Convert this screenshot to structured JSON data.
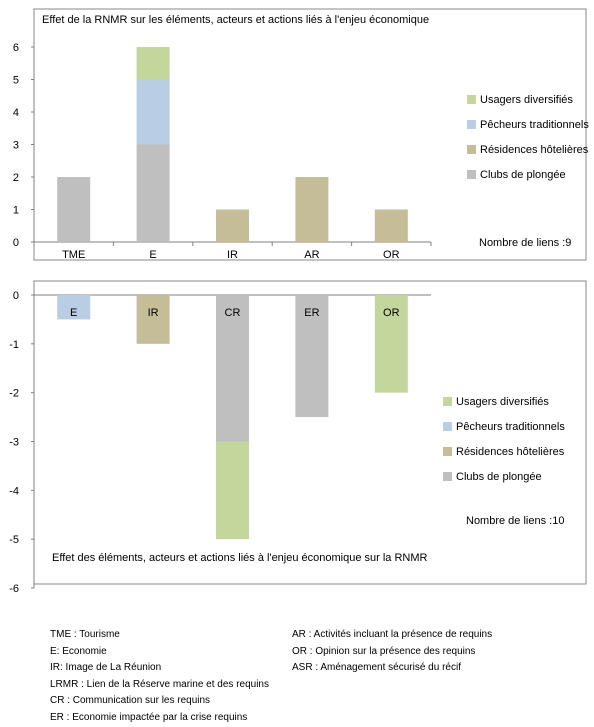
{
  "series_colors": {
    "Usagers diversifiés": "#c3d69b",
    "Pêcheurs traditionnels": "#b9cde5",
    "Résidences hôtelières": "#c4bd97",
    "Clubs de plongée": "#bfbfbf"
  },
  "chart_data": [
    {
      "type": "bar",
      "stacked": true,
      "title": "Effet de la RNMR sur les éléments, acteurs et actions liés à l'enjeu économique",
      "categories": [
        "TME",
        "E",
        "IR",
        "AR",
        "OR"
      ],
      "series": [
        {
          "name": "Clubs de plongée",
          "values": [
            2,
            3,
            0,
            0,
            0
          ]
        },
        {
          "name": "Résidences hôtelières",
          "values": [
            0,
            0,
            1,
            2,
            1
          ]
        },
        {
          "name": "Pêcheurs traditionnels",
          "values": [
            0,
            2,
            0,
            0,
            0
          ]
        },
        {
          "name": "Usagers diversifiés",
          "values": [
            0,
            1,
            0,
            0,
            0
          ]
        }
      ],
      "ylim": [
        0,
        6
      ],
      "yticks": [
        0,
        1,
        2,
        3,
        4,
        5,
        6
      ],
      "legend": [
        "Usagers diversifiés",
        "Pêcheurs traditionnels",
        "Résidences hôtelières",
        "Clubs de plongée"
      ],
      "legend_position": "right",
      "note": "Nombre de liens :9",
      "grid": false
    },
    {
      "type": "bar",
      "stacked": true,
      "title": "Effet des éléments, acteurs et actions liés à l'enjeu économique sur la RNMR",
      "categories": [
        "E",
        "IR",
        "CR",
        "ER",
        "OR"
      ],
      "series": [
        {
          "name": "Clubs de plongée",
          "values": [
            0,
            0,
            -3,
            -2.5,
            0
          ]
        },
        {
          "name": "Résidences hôtelières",
          "values": [
            0,
            -1,
            0,
            0,
            0
          ]
        },
        {
          "name": "Pêcheurs traditionnels",
          "values": [
            -0.5,
            0,
            0,
            0,
            0
          ]
        },
        {
          "name": "Usagers diversifiés",
          "values": [
            0,
            0,
            -2,
            0,
            -2
          ]
        }
      ],
      "ylim": [
        -6,
        0
      ],
      "yticks": [
        0,
        -1,
        -2,
        -3,
        -4,
        -5,
        -6
      ],
      "legend": [
        "Usagers diversifiés",
        "Pêcheurs traditionnels",
        "Résidences hôtelières",
        "Clubs de plongée"
      ],
      "legend_position": "right",
      "note": "Nombre de liens :10",
      "grid": false
    }
  ],
  "glossary": {
    "left": [
      "TME : Tourisme",
      "E: Economie",
      "IR: Image de La Réunion",
      "LRMR : Lien de la Réserve marine et des requins",
      "CR : Communication sur les requins",
      "ER : Economie impactée par la crise requins"
    ],
    "right": [
      "AR : Activités incluant la présence de requins",
      "OR : Opinion sur la présence des requins",
      "ASR : Aménagement sécurisé du récif"
    ]
  }
}
